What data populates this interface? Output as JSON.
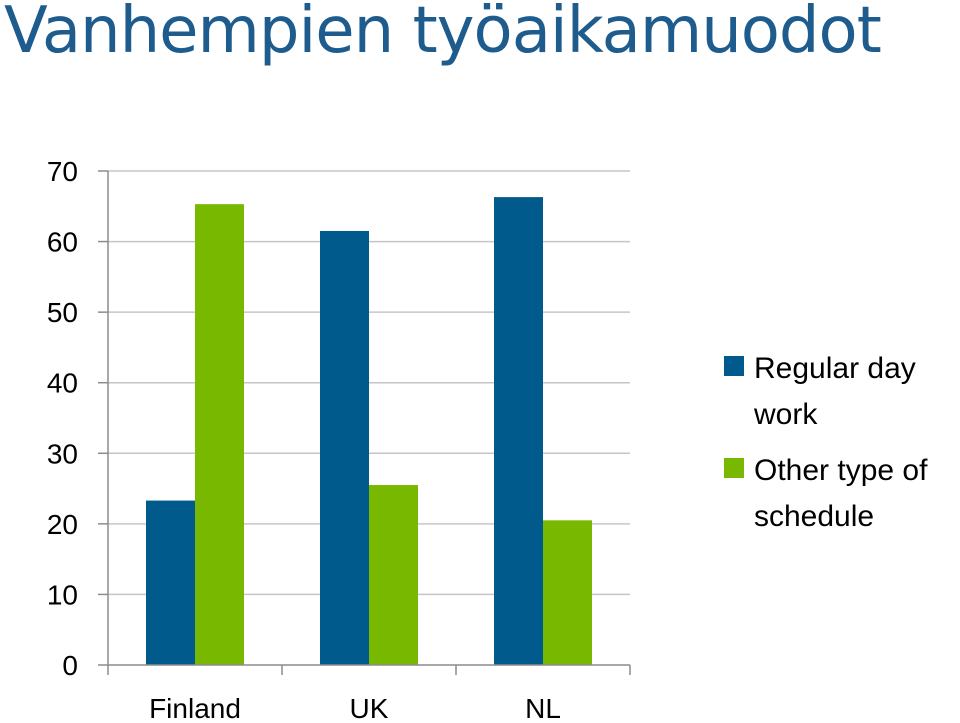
{
  "chart_data": {
    "type": "bar",
    "title": "Vanhempien työaikamuodot",
    "categories": [
      "Finland",
      "UK",
      "NL"
    ],
    "series": [
      {
        "name": "Regular day work",
        "color": "#005a8c",
        "values": [
          23.3,
          61.5,
          66.3
        ]
      },
      {
        "name": "Other type of schedule",
        "color": "#78b800",
        "values": [
          65.3,
          25.5,
          20.5
        ]
      }
    ],
    "ylim": [
      0,
      70
    ],
    "yticks": [
      0,
      10,
      20,
      30,
      40,
      50,
      60,
      70
    ],
    "grid": true,
    "legend": "right",
    "legend_lines": [
      [
        "Regular day",
        "work"
      ],
      [
        "Other type of",
        "schedule"
      ]
    ]
  }
}
